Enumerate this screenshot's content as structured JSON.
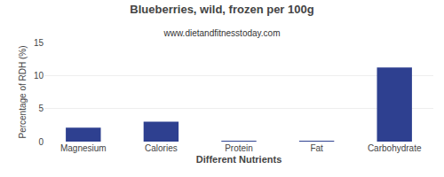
{
  "chart_data": {
    "type": "bar",
    "title": "Blueberries, wild, frozen per 100g",
    "subtitle": "www.dietandfitnesstoday.com",
    "xlabel": "Different Nutrients",
    "ylabel": "Percentage of RDH (%)",
    "categories": [
      "Magnesium",
      "Calories",
      "Protein",
      "Fat",
      "Carbohydrate"
    ],
    "values": [
      2.1,
      3.0,
      0.05,
      0.05,
      11.2
    ],
    "color": "#2e4090",
    "ylim": [
      0,
      15
    ],
    "yticks": [
      0,
      5,
      10,
      15
    ],
    "grid": true
  }
}
